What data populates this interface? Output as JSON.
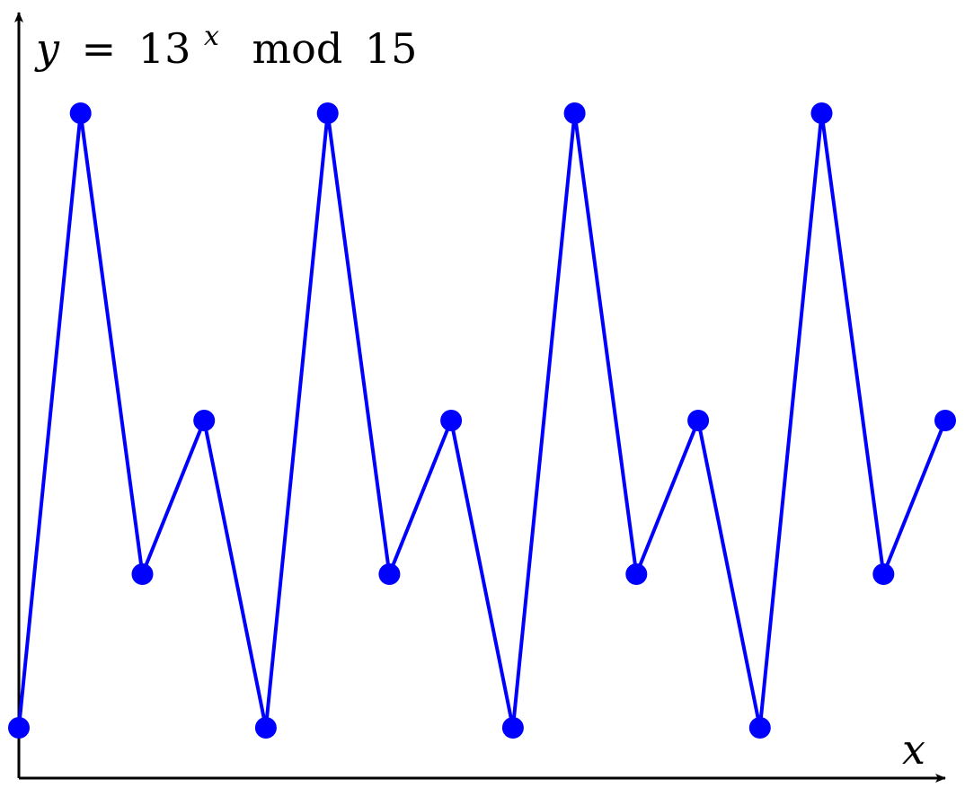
{
  "chart_data": {
    "type": "line",
    "title": {
      "y": "y",
      "eq": "=",
      "base": "13",
      "exp": "x",
      "mod": "mod",
      "modulus": "15"
    },
    "xlabel": "x",
    "ylabel": "",
    "x": [
      0,
      1,
      2,
      3,
      4,
      5,
      6,
      7,
      8,
      9,
      10,
      11,
      12,
      13,
      14,
      15
    ],
    "series": [
      {
        "values": [
          1,
          13,
          4,
          7,
          1,
          13,
          4,
          7,
          1,
          13,
          4,
          7,
          1,
          13,
          4,
          7
        ],
        "color": "#0000ff"
      }
    ],
    "xlim": [
      0,
      15
    ],
    "ylim": [
      1,
      13
    ],
    "grid": false,
    "legend": "none",
    "markers": true
  }
}
